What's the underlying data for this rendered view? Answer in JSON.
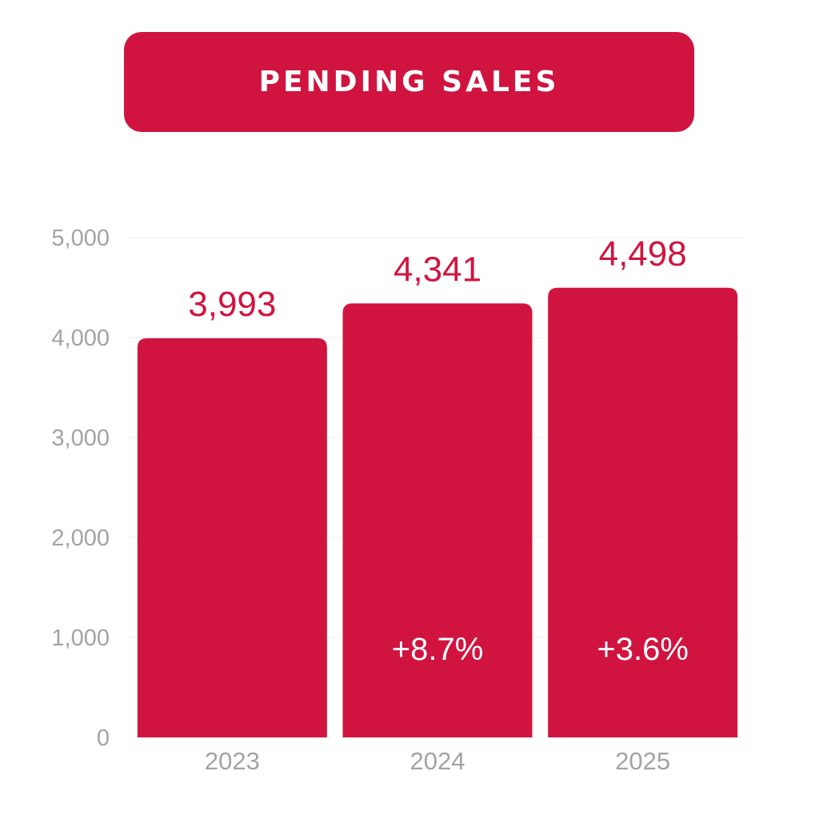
{
  "colors": {
    "accent": "#d0143f",
    "axis_text": "#a3a3a3",
    "grid": "#efefef",
    "white": "#ffffff"
  },
  "chart_data": {
    "type": "bar",
    "title": "PENDING SALES",
    "categories": [
      "2023",
      "2024",
      "2025"
    ],
    "values": [
      3993,
      4341,
      4498
    ],
    "value_labels": [
      "3,993",
      "4,341",
      "4,498"
    ],
    "change_labels": [
      "",
      "+8.7%",
      "+3.6%"
    ],
    "ylim": [
      0,
      5000
    ],
    "yticks": [
      0,
      1000,
      2000,
      3000,
      4000,
      5000
    ],
    "ytick_labels": [
      "0",
      "1,000",
      "2,000",
      "3,000",
      "4,000",
      "5,000"
    ],
    "grid": true,
    "legend": "none"
  }
}
